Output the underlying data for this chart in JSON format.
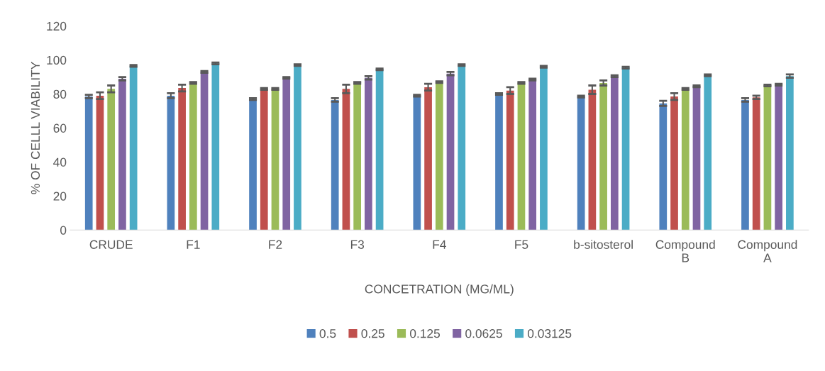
{
  "chart_data": {
    "type": "bar",
    "xlabel": "CONCETRATION (MG/ML)",
    "ylabel": "% OF CELLL VIABILITY",
    "categories": [
      "CRUDE",
      "F1",
      "F2",
      "F3",
      "F4",
      "F5",
      "b-sitosterol",
      "Compound\nB",
      "Compound\nA"
    ],
    "series": [
      {
        "name": "0.5",
        "color": "#4f81bd",
        "values": [
          78.5,
          79,
          77,
          76.5,
          79,
          80,
          78.5,
          74.5,
          76.5
        ],
        "errors": [
          1,
          1.5,
          0.5,
          1,
          0.5,
          0.5,
          0.5,
          1.5,
          1
        ]
      },
      {
        "name": "0.25",
        "color": "#c0504d",
        "values": [
          79,
          83.5,
          83,
          83,
          84,
          82,
          82.5,
          78.5,
          78
        ],
        "errors": [
          2,
          2,
          0.5,
          2.5,
          2,
          2,
          2.5,
          2,
          1
        ]
      },
      {
        "name": "0.125",
        "color": "#9bbb59",
        "values": [
          83,
          86.5,
          83,
          86.5,
          87,
          86.5,
          86.5,
          83,
          85
        ],
        "errors": [
          2,
          0.5,
          0.5,
          0.5,
          0.5,
          0.5,
          1.5,
          0.5,
          0.5
        ]
      },
      {
        "name": "0.0625",
        "color": "#8064a2",
        "values": [
          89,
          93,
          89.5,
          89.5,
          92,
          88.5,
          90.5,
          84.5,
          85.5
        ],
        "errors": [
          1,
          0.5,
          0.5,
          1,
          1,
          0.5,
          0.5,
          0.5,
          0.5
        ]
      },
      {
        "name": "0.03125",
        "color": "#4bacc6",
        "values": [
          96.5,
          98,
          97,
          94.5,
          97,
          96,
          95.5,
          91,
          90.5
        ],
        "errors": [
          0.5,
          0.5,
          0.5,
          0.5,
          0.5,
          0.5,
          0.5,
          0.5,
          1
        ]
      }
    ],
    "ylim": [
      0,
      120
    ],
    "yticks": [
      0,
      20,
      40,
      60,
      80,
      100,
      120
    ],
    "grid": false,
    "legend": "bottom"
  }
}
